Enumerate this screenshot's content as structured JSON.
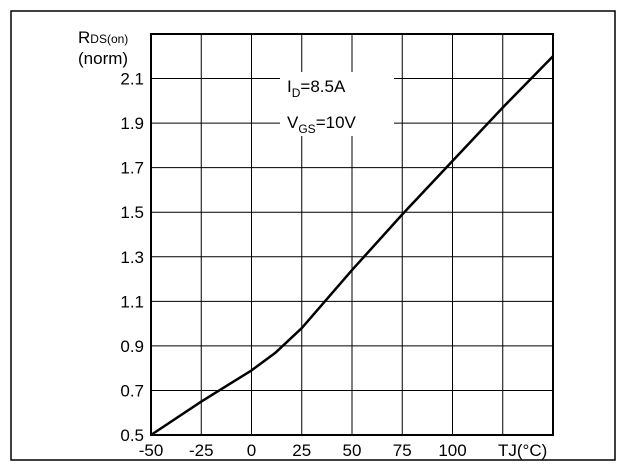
{
  "chart_data": {
    "type": "line",
    "ylabel_main": "R",
    "ylabel_sub": "DS(on)",
    "ylabel_unit": "(norm)",
    "xlabel_main": "T",
    "xlabel_sub": "J",
    "xlabel_unit": "(°C)",
    "xlim": [
      -50,
      150
    ],
    "ylim": [
      0.5,
      2.3
    ],
    "x_ticks": [
      -50,
      -25,
      0,
      25,
      50,
      75,
      100
    ],
    "x_tick_labels": [
      "-50",
      "-25",
      "0",
      "25",
      "50",
      "75",
      "100"
    ],
    "y_ticks": [
      0.5,
      0.7,
      0.9,
      1.1,
      1.3,
      1.5,
      1.7,
      1.9,
      2.1
    ],
    "y_tick_labels": [
      "0.5",
      "0.7",
      "0.9",
      "1.1",
      "1.3",
      "1.5",
      "1.7",
      "1.9",
      "2.1"
    ],
    "grid": true,
    "annotations": [
      {
        "main": "I",
        "sub": "D",
        "rest": "=8.5A"
      },
      {
        "main": "V",
        "sub": "GS",
        "rest": "=10V"
      }
    ],
    "series": [
      {
        "x": [
          -50,
          -25,
          0,
          12,
          25,
          50,
          75,
          100,
          125,
          150
        ],
        "y": [
          0.5,
          0.65,
          0.79,
          0.87,
          0.98,
          1.24,
          1.49,
          1.73,
          1.97,
          2.2
        ]
      }
    ]
  }
}
